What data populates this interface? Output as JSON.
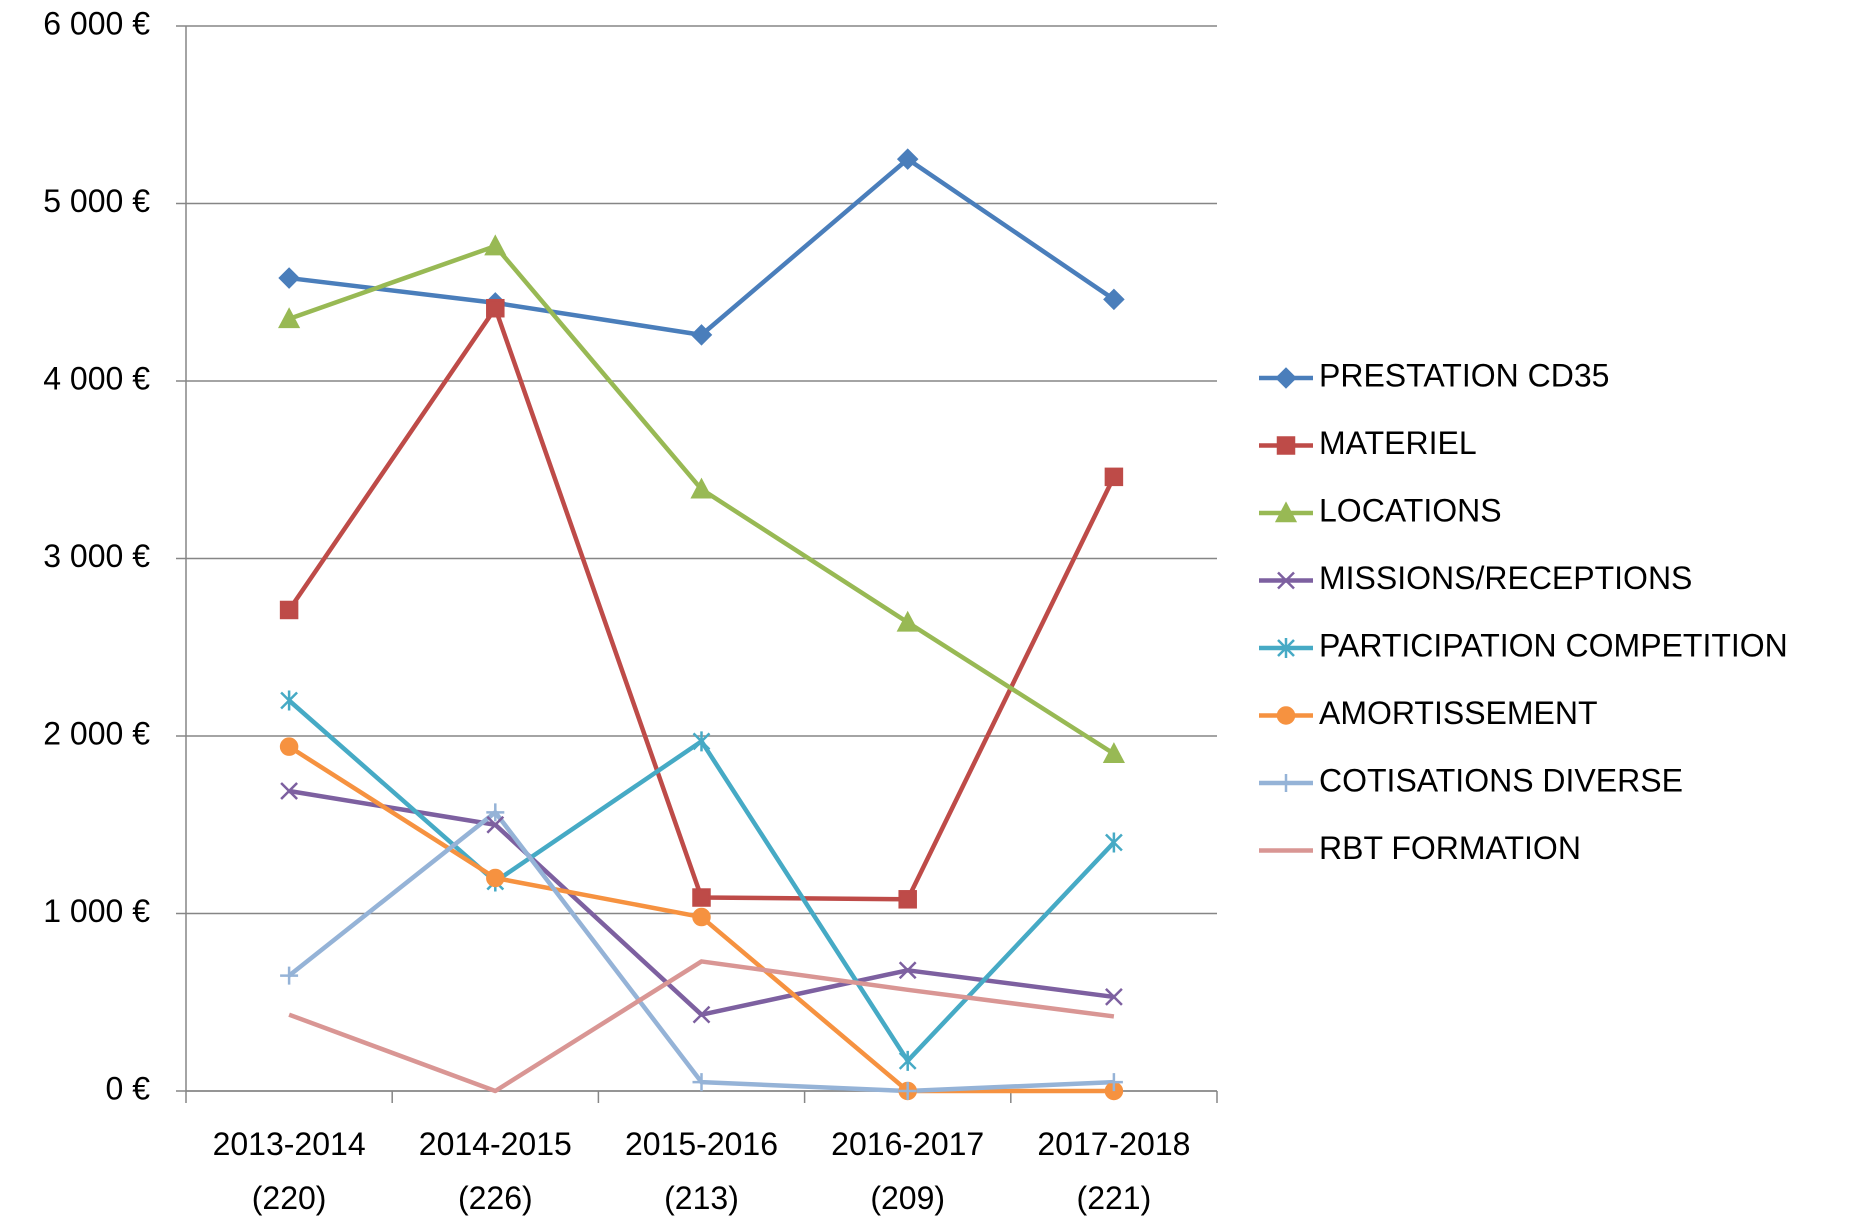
{
  "chart_data": {
    "type": "line",
    "categories": [
      "2013-2014 (220)",
      "2014-2015 (226)",
      "2015-2016 (213)",
      "2016-2017 (209)",
      "2017-2018 (221)"
    ],
    "series": [
      {
        "name": "PRESTATION CD35",
        "color": "#4a7ebb",
        "marker": "diamond",
        "values": [
          4580,
          4440,
          4260,
          5250,
          4460
        ]
      },
      {
        "name": "MATERIEL",
        "color": "#be4b48",
        "marker": "square",
        "values": [
          2710,
          4410,
          1090,
          1080,
          3460
        ]
      },
      {
        "name": "LOCATIONS",
        "color": "#98b954",
        "marker": "triangle",
        "values": [
          4350,
          4760,
          3390,
          2640,
          1900
        ]
      },
      {
        "name": "MISSIONS/RECEPTIONS",
        "color": "#7d60a0",
        "marker": "x",
        "values": [
          1690,
          1500,
          430,
          680,
          530
        ]
      },
      {
        "name": "PARTICIPATION COMPETITION",
        "color": "#46aac5",
        "marker": "star",
        "values": [
          2200,
          1180,
          1970,
          170,
          1400
        ]
      },
      {
        "name": "AMORTISSEMENT",
        "color": "#f69240",
        "marker": "circle",
        "values": [
          1940,
          1200,
          980,
          0,
          0
        ]
      },
      {
        "name": "COTISATIONS DIVERSE",
        "color": "#95b3d7",
        "marker": "plus",
        "values": [
          650,
          1570,
          50,
          0,
          50
        ]
      },
      {
        "name": "RBT FORMATION",
        "color": "#d99694",
        "marker": "none",
        "values": [
          430,
          0,
          730,
          570,
          420
        ]
      }
    ],
    "ylim": [
      0,
      6000
    ],
    "yticks": [
      {
        "value": 0,
        "label": "0 €"
      },
      {
        "value": 1000,
        "label": "1 000 €"
      },
      {
        "value": 2000,
        "label": "2 000 €"
      },
      {
        "value": 3000,
        "label": "3 000 €"
      },
      {
        "value": 4000,
        "label": "4 000 €"
      },
      {
        "value": 5000,
        "label": "5 000 €"
      },
      {
        "value": 6000,
        "label": "6 000 €"
      }
    ],
    "grid": true,
    "legend": "right"
  }
}
